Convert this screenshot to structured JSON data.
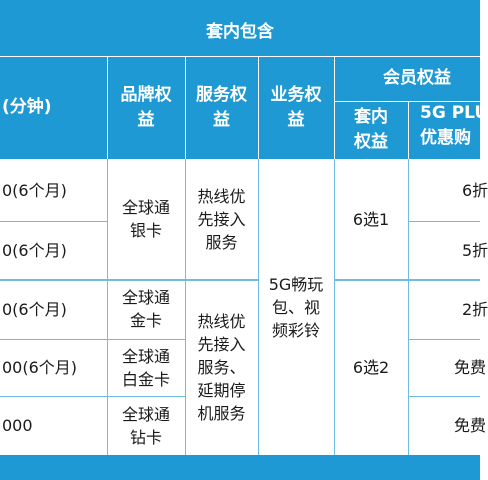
{
  "table": {
    "title": "套内包含",
    "headers": {
      "minutes": "(分钟)",
      "brand": "品牌权益",
      "service": "服务权益",
      "business": "业务权益",
      "member": "会员权益",
      "member_inner": "套内权益",
      "plus": "5G PLU",
      "plus_line2": "优惠购"
    },
    "rows": [
      {
        "minutes": "0(6个月)",
        "plus": "6折"
      },
      {
        "minutes": "0(6个月)",
        "plus": "5折"
      },
      {
        "minutes": "0(6个月)",
        "plus": "2折"
      },
      {
        "minutes": "00(6个月)",
        "plus": "免费"
      },
      {
        "minutes": "000",
        "plus": "免费"
      }
    ],
    "brand_cards": [
      "全球通银卡",
      "全球通金卡",
      "全球通白金卡",
      "全球通钻卡"
    ],
    "service_groups": [
      "热线优先接入服务",
      "热线优先接入服务、延期停机服务"
    ],
    "business_value": "5G畅玩包、视频彩铃",
    "member_choices": [
      "6选1",
      "6选2"
    ]
  }
}
